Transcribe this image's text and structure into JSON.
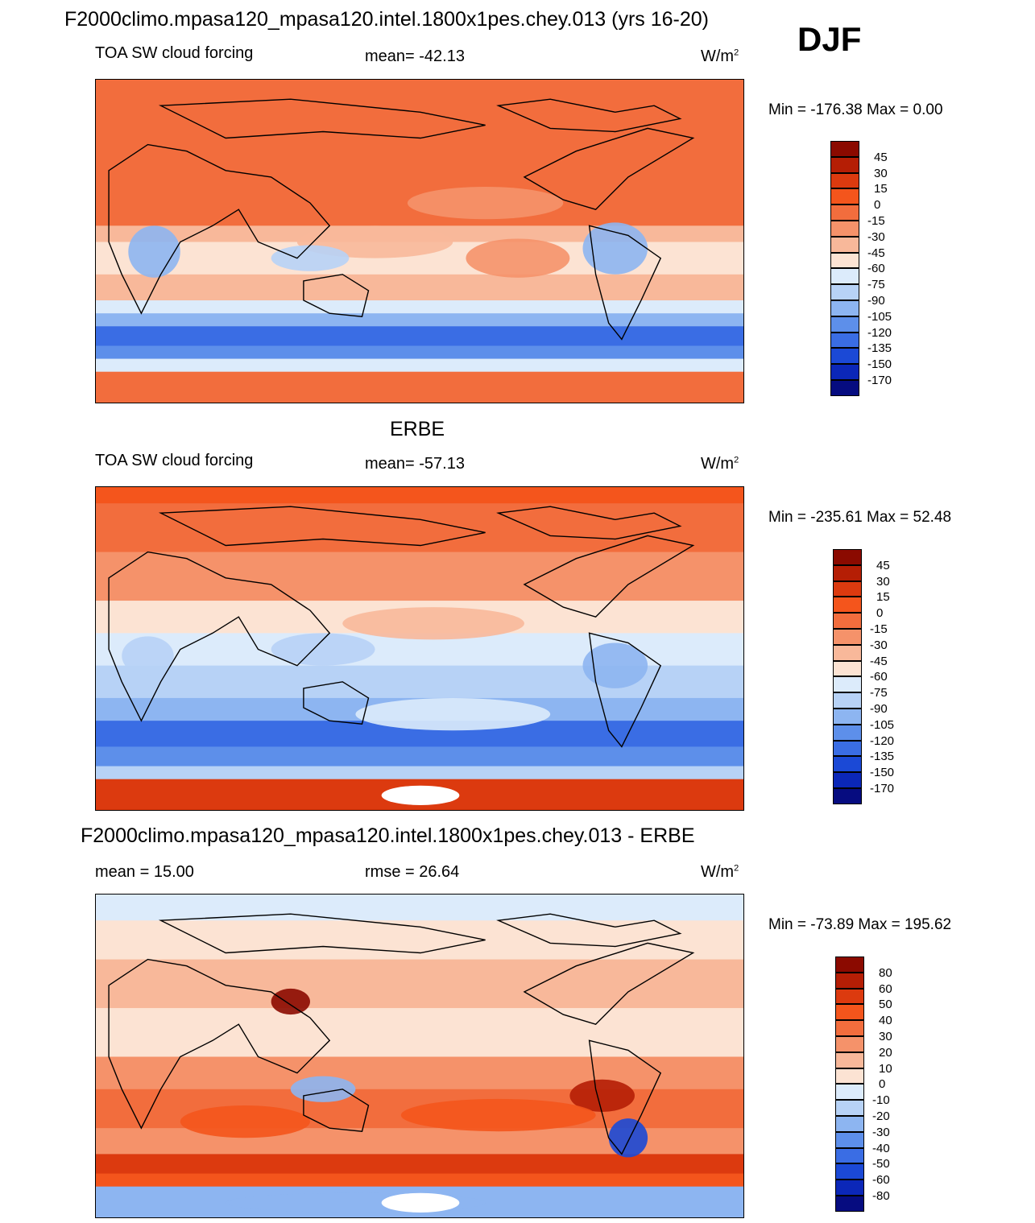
{
  "title": "F2000climo.mpasa120_mpasa120.intel.1800x1pes.chey.013 (yrs 16-20)",
  "season": "DJF",
  "panels": [
    {
      "heading": "",
      "left_label": "TOA SW cloud forcing",
      "center_label": "mean= -42.13",
      "units": "W/m",
      "units_sup": "2",
      "minmax": "Min = -176.38 Max =   0.00",
      "map_icon": "world-map-icon"
    },
    {
      "heading": "ERBE",
      "left_label": "TOA SW cloud forcing",
      "center_label": "mean= -57.13",
      "units": "W/m",
      "units_sup": "2",
      "minmax": "Min = -235.61 Max =  52.48",
      "map_icon": "world-map-icon"
    },
    {
      "heading": "F2000climo.mpasa120_mpasa120.intel.1800x1pes.chey.013 - ERBE",
      "left_label": "mean =  15.00",
      "center_label": "rmse =  26.64",
      "units": "W/m",
      "units_sup": "2",
      "minmax": "Min = -73.89 Max = 195.62",
      "map_icon": "world-map-icon"
    }
  ],
  "chart_data": [
    {
      "type": "heatmap",
      "title": "TOA SW cloud forcing",
      "mean": -42.13,
      "min": -176.38,
      "max": 0.0,
      "units": "W/m2",
      "colorbar_levels": [
        "45",
        "30",
        "15",
        "0",
        "-15",
        "-30",
        "-45",
        "-60",
        "-75",
        "-90",
        "-105",
        "-120",
        "-135",
        "-150",
        "-170"
      ],
      "colorbar_colors": [
        "#8b0a00",
        "#b51e05",
        "#dc3a0f",
        "#f4551c",
        "#f26d3d",
        "#f5926a",
        "#f8b89a",
        "#fce3d3",
        "#dcebfb",
        "#b7d2f6",
        "#8db5f1",
        "#5d8fea",
        "#3a6de4",
        "#1b49d6",
        "#0b27b8",
        "#060c80"
      ]
    },
    {
      "type": "heatmap",
      "title": "ERBE TOA SW cloud forcing",
      "mean": -57.13,
      "min": -235.61,
      "max": 52.48,
      "units": "W/m2",
      "colorbar_levels": [
        "45",
        "30",
        "15",
        "0",
        "-15",
        "-30",
        "-45",
        "-60",
        "-75",
        "-90",
        "-105",
        "-120",
        "-135",
        "-150",
        "-170"
      ],
      "colorbar_colors": [
        "#8b0a00",
        "#b51e05",
        "#dc3a0f",
        "#f4551c",
        "#f26d3d",
        "#f5926a",
        "#f8b89a",
        "#fce3d3",
        "#dcebfb",
        "#b7d2f6",
        "#8db5f1",
        "#5d8fea",
        "#3a6de4",
        "#1b49d6",
        "#0b27b8",
        "#060c80"
      ]
    },
    {
      "type": "heatmap",
      "title": "Model - ERBE difference",
      "mean": 15.0,
      "rmse": 26.64,
      "min": -73.89,
      "max": 195.62,
      "units": "W/m2",
      "colorbar_levels": [
        "80",
        "60",
        "50",
        "40",
        "30",
        "20",
        "10",
        "0",
        "-10",
        "-20",
        "-30",
        "-40",
        "-50",
        "-60",
        "-80"
      ],
      "colorbar_colors": [
        "#8b0a00",
        "#b51e05",
        "#dc3a0f",
        "#f4551c",
        "#f26d3d",
        "#f5926a",
        "#f8b89a",
        "#fce3d3",
        "#dcebfb",
        "#b7d2f6",
        "#8db5f1",
        "#5d8fea",
        "#3a6de4",
        "#1b49d6",
        "#0b27b8",
        "#060c80"
      ]
    }
  ]
}
